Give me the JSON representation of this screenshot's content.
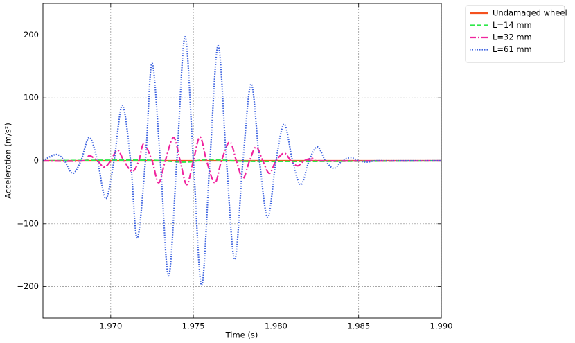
{
  "chart_data": {
    "type": "line",
    "xlabel": "Time (s)",
    "ylabel": "Acceleration (m/s²)",
    "xlim": [
      1.9659,
      1.99
    ],
    "ylim": [
      -250,
      250
    ],
    "xticks": [
      {
        "value": 1.97,
        "label": "1.970"
      },
      {
        "value": 1.975,
        "label": "1.975"
      },
      {
        "value": 1.98,
        "label": "1.980"
      },
      {
        "value": 1.985,
        "label": "1.985"
      },
      {
        "value": 1.99,
        "label": "1.990"
      }
    ],
    "yticks": [
      {
        "value": -200,
        "label": "−200"
      },
      {
        "value": -100,
        "label": "−100"
      },
      0,
      100,
      200
    ],
    "grid": true,
    "legend_position": "outside upper right",
    "series": [
      {
        "name": "Undamaged wheel",
        "color": "#f4511e",
        "dash": "solid",
        "x": [
          1.9659,
          1.99
        ],
        "values": [
          0,
          0
        ]
      },
      {
        "name": "L=14 mm",
        "color": "#2ee84a",
        "dash": "dashed",
        "x": [
          1.9659,
          1.972,
          1.9745,
          1.976,
          1.979,
          1.99
        ],
        "values": [
          0,
          1,
          -2,
          2,
          -1,
          0
        ]
      },
      {
        "name": "L=32 mm",
        "color": "#f0259e",
        "dash": "dashdot",
        "x": [
          1.9659,
          1.9683,
          1.9687,
          1.9692,
          1.9696,
          1.97,
          1.9704,
          1.9708,
          1.9713,
          1.9717,
          1.972,
          1.9725,
          1.9729,
          1.9733,
          1.9738,
          1.9742,
          1.9746,
          1.975,
          1.9754,
          1.9758,
          1.9763,
          1.9767,
          1.9772,
          1.9776,
          1.978,
          1.9784,
          1.9788,
          1.9792,
          1.9796,
          1.98,
          1.9805,
          1.9809,
          1.9813,
          1.9817,
          1.9822,
          1.9826,
          1.99
        ],
        "values": [
          0,
          0,
          8,
          0,
          -10,
          0,
          17,
          0,
          -17,
          0,
          27,
          0,
          -35,
          0,
          37,
          0,
          -38,
          0,
          38,
          0,
          -35,
          0,
          30,
          0,
          -28,
          0,
          22,
          0,
          -20,
          0,
          12,
          0,
          -8,
          0,
          4,
          0,
          0
        ]
      },
      {
        "name": "L=61 mm",
        "color": "#3d63e0",
        "dash": "dotted",
        "x": [
          1.9659,
          1.9667,
          1.9672,
          1.9677,
          1.9682,
          1.9687,
          1.9692,
          1.9697,
          1.9702,
          1.9707,
          1.9712,
          1.9716,
          1.9721,
          1.9725,
          1.973,
          1.9735,
          1.974,
          1.9745,
          1.975,
          1.9755,
          1.976,
          1.9765,
          1.977,
          1.9775,
          1.978,
          1.9785,
          1.979,
          1.9795,
          1.98,
          1.9805,
          1.981,
          1.9815,
          1.982,
          1.9825,
          1.983,
          1.9835,
          1.984,
          1.9845,
          1.985,
          1.9855,
          1.986,
          1.987,
          1.99
        ],
        "values": [
          0,
          10,
          0,
          -20,
          0,
          37,
          0,
          -60,
          0,
          88,
          0,
          -123,
          0,
          155,
          0,
          -183,
          0,
          197,
          0,
          -198,
          0,
          183,
          0,
          -157,
          0,
          122,
          0,
          -90,
          0,
          58,
          0,
          -38,
          0,
          22,
          0,
          -12,
          0,
          5,
          0,
          -2,
          0,
          0,
          0
        ]
      }
    ]
  }
}
